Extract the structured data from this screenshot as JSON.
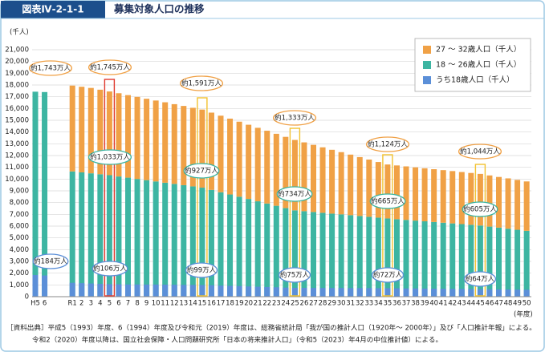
{
  "chart_data": {
    "type": "bar",
    "figure_label": "図表Ⅳ-2-1-1",
    "title": "募集対象人口の推移",
    "y_unit": "(千人)",
    "x_unit": "(年度)",
    "categories": [
      "H5",
      "6",
      null,
      null,
      "R1",
      "2",
      "3",
      "4",
      "5",
      "6",
      "7",
      "8",
      "9",
      "10",
      "11",
      "12",
      "13",
      "14",
      "15",
      "16",
      "17",
      "18",
      "19",
      "20",
      "21",
      "22",
      "23",
      "24",
      "25",
      "26",
      "27",
      "28",
      "29",
      "30",
      "31",
      "32",
      "33",
      "34",
      "35",
      "36",
      "37",
      "38",
      "39",
      "40",
      "41",
      "42",
      "43",
      "44",
      "45",
      "46",
      "47",
      "48",
      "49",
      "50"
    ],
    "series": [
      {
        "name": "27 ～ 32歳人口（千人）",
        "color": "#f0a146",
        "values": [
          null,
          null,
          null,
          null,
          7300,
          7280,
          7260,
          7190,
          7120,
          7080,
          7020,
          6980,
          6920,
          6880,
          6840,
          6780,
          6740,
          6680,
          6640,
          6570,
          6510,
          6450,
          6380,
          6310,
          6250,
          6190,
          6120,
          6060,
          5990,
          5850,
          5710,
          5570,
          5430,
          5290,
          5150,
          5010,
          4870,
          4730,
          4590,
          4570,
          4550,
          4530,
          4510,
          4490,
          4470,
          4450,
          4430,
          4410,
          4390,
          4350,
          4310,
          4280,
          4240,
          4200
        ]
      },
      {
        "name": "18 ～ 26歳人口（千人）",
        "color": "#3db5a2",
        "values": [
          17430,
          17400,
          null,
          null,
          10650,
          10570,
          10490,
          10410,
          10330,
          10220,
          10120,
          10010,
          9910,
          9800,
          9690,
          9590,
          9480,
          9380,
          9270,
          9080,
          8880,
          8690,
          8500,
          8310,
          8110,
          7920,
          7730,
          7530,
          7340,
          7270,
          7200,
          7130,
          7060,
          7000,
          6930,
          6860,
          6790,
          6720,
          6650,
          6590,
          6530,
          6470,
          6410,
          6350,
          6290,
          6230,
          6170,
          6110,
          6050,
          5960,
          5870,
          5780,
          5690,
          5600
        ]
      },
      {
        "name": "うち18歳人口（千人）",
        "color": "#5b8fd8",
        "values": [
          1840,
          1800,
          null,
          null,
          1180,
          1150,
          1120,
          1090,
          1060,
          1050,
          1040,
          1040,
          1030,
          1030,
          1020,
          1010,
          1000,
          1000,
          990,
          970,
          940,
          920,
          900,
          870,
          850,
          820,
          800,
          770,
          750,
          750,
          740,
          740,
          740,
          740,
          730,
          730,
          730,
          720,
          720,
          710,
          700,
          700,
          690,
          680,
          670,
          660,
          660,
          650,
          640,
          630,
          620,
          610,
          600,
          590
        ]
      }
    ],
    "ylim": [
      0,
      21000
    ],
    "yticks": [
      0,
      {
        "value": 1000,
        "label": "1,000"
      },
      {
        "value": 2000,
        "label": "2,000"
      },
      {
        "value": 3000,
        "label": "3,000"
      },
      {
        "value": 4000,
        "label": "4,000"
      },
      {
        "value": 5000,
        "label": "5,000"
      },
      {
        "value": 6000,
        "label": "6,000"
      },
      {
        "value": 7000,
        "label": "7,000"
      },
      {
        "value": 8000,
        "label": "8,000"
      },
      {
        "value": 9000,
        "label": "9,000"
      },
      {
        "value": 10000,
        "label": "10,000"
      },
      {
        "value": 11000,
        "label": "11,000"
      },
      {
        "value": 12000,
        "label": "12,000"
      },
      {
        "value": 13000,
        "label": "13,000"
      },
      {
        "value": 14000,
        "label": "14,000"
      },
      {
        "value": 15000,
        "label": "15,000"
      },
      {
        "value": 16000,
        "label": "16,000"
      },
      {
        "value": 17000,
        "label": "17,000"
      },
      {
        "value": 18000,
        "label": "18,000"
      },
      {
        "value": 19000,
        "label": "19,000"
      },
      {
        "value": 20000,
        "label": "20,000"
      },
      {
        "value": 21000,
        "label": "21,000"
      }
    ],
    "grid": true,
    "legend": "upper right",
    "annotations": [
      "約1,743万人",
      "約1,745万人",
      "約1,591万人",
      "約1,333万人",
      "約1,124万人",
      "約1,044万人",
      "約1,033万人",
      "約927万人",
      "約734万人",
      "約665万人",
      "約605万人",
      "約184万人",
      "約106万人",
      "約99万人",
      "約75万人",
      "約72万人",
      "約64万人"
    ],
    "notes": [
      "［資料出典］平成5（1993）年度、6（1994）年度及び令和元（2019）年度は、総務省統計局「我が国の推計人口（1920年～ 2000年）」及び「人口推計年報」による。",
      "令和2（2020）年度以降は、国立社会保障・人口問題研究所「日本の将来推計人口」（令和5（2023）年4月の中位推計値）による。"
    ]
  }
}
